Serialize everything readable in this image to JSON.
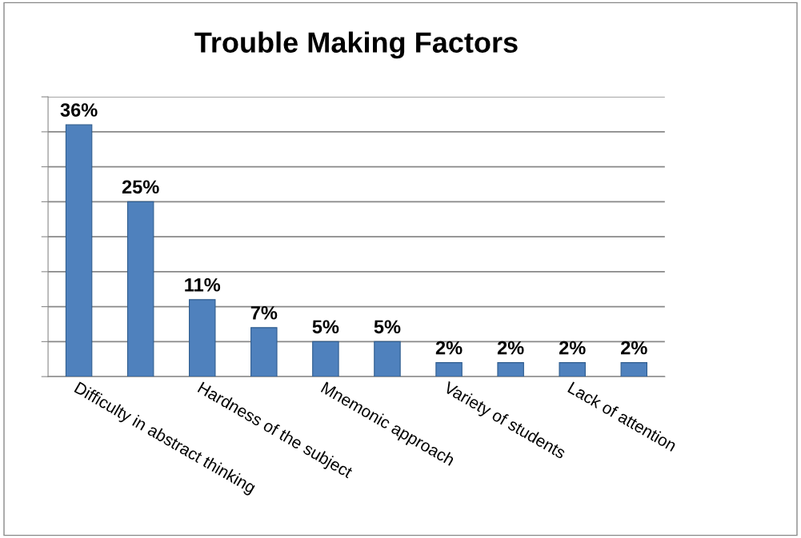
{
  "chart_data": {
    "type": "bar",
    "title": "Trouble Making Factors",
    "categories": [
      "Difficulty in abstract thinking",
      null,
      "Hardness of the subject",
      null,
      "Mnemonic approach",
      null,
      "Variety of students",
      null,
      "Lack of attention",
      null
    ],
    "values": [
      36,
      25,
      11,
      7,
      5,
      5,
      2,
      2,
      2,
      2
    ],
    "value_labels": [
      "36%",
      "25%",
      "11%",
      "7%",
      "5%",
      "5%",
      "2%",
      "2%",
      "2%",
      "2%"
    ],
    "color": "#4f81bd",
    "ylim": [
      0,
      40
    ],
    "yticks": [
      {
        "value": 0,
        "label": null
      },
      {
        "value": 5,
        "label": null
      },
      {
        "value": 10,
        "label": null
      },
      {
        "value": 15,
        "label": null
      },
      {
        "value": 20,
        "label": null
      },
      {
        "value": 25,
        "label": null
      },
      {
        "value": 30,
        "label": null
      },
      {
        "value": 35,
        "label": null
      },
      {
        "value": 40,
        "label": null
      }
    ],
    "tick_labels": "x",
    "grid": "y",
    "legend": false
  }
}
